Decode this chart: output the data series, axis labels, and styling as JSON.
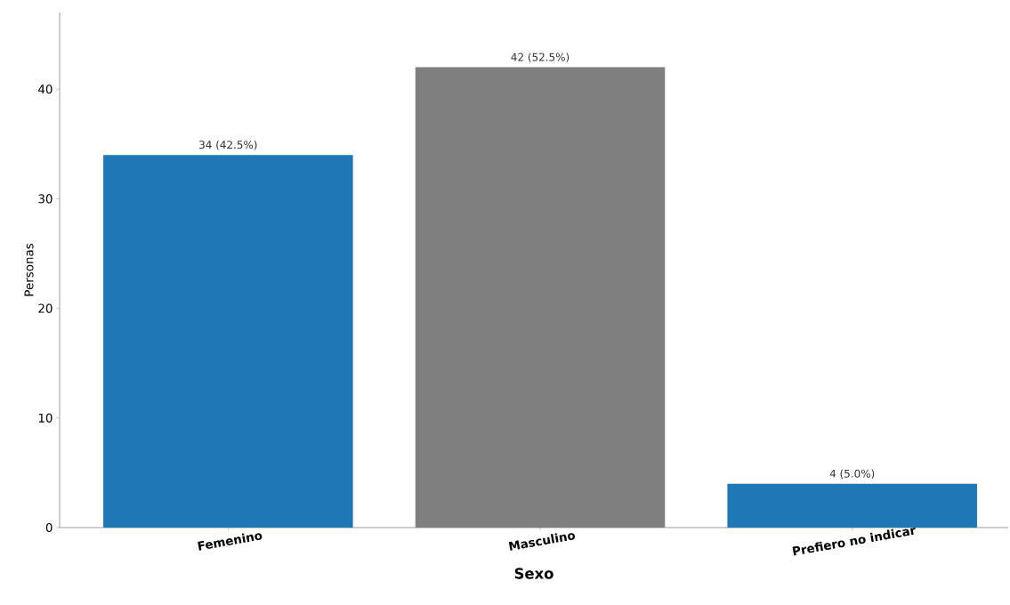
{
  "chart_data": {
    "type": "bar",
    "xlabel": "Sexo",
    "ylabel": "Personas",
    "categories": [
      "Femenino",
      "Masculino",
      "Prefiero no indicar"
    ],
    "values": [
      34,
      42,
      4
    ],
    "colors": [
      "#1f77b4",
      "#7f7f7f",
      "#1f77b4"
    ],
    "value_labels": [
      "34 (42.5%)",
      "42 (52.5%)",
      "4 (5.0%)"
    ],
    "ylim": [
      0,
      47
    ],
    "yticks": [
      0,
      10,
      20,
      30,
      40
    ],
    "grid": false
  }
}
